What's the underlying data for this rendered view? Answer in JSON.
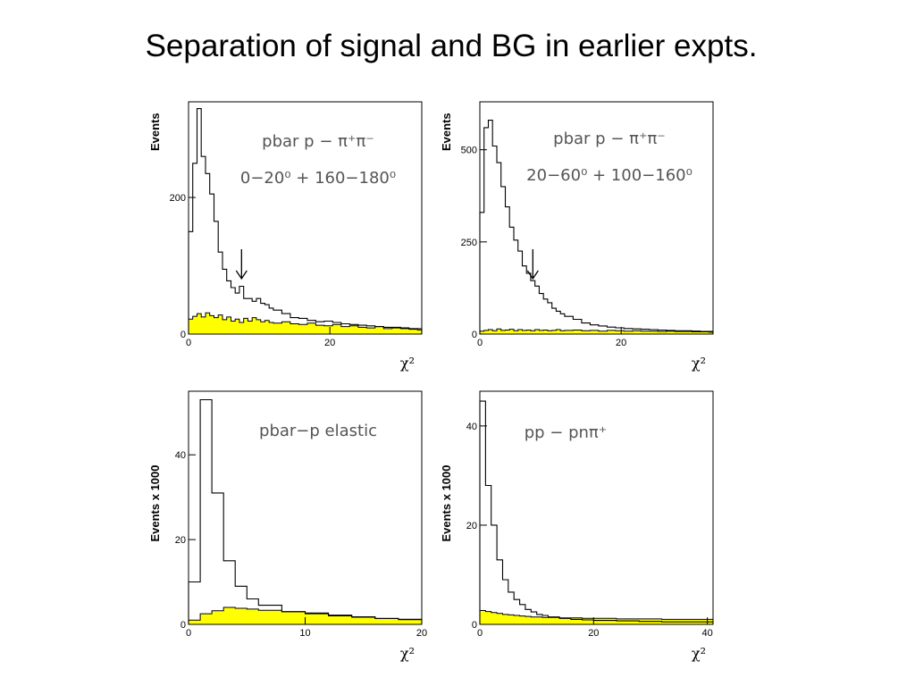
{
  "slide": {
    "title": "Separation of signal and BG in earlier expts."
  },
  "colors": {
    "background_fill": "#ffff00",
    "line": "#000000",
    "annotation": "#555555"
  },
  "chart_data": [
    {
      "type": "histogram",
      "ylabel": "Events",
      "xlabel": "χ²",
      "xlim": [
        0,
        33
      ],
      "ylim": [
        0,
        340
      ],
      "xticks": [
        "0",
        "20"
      ],
      "yticks": [
        "0",
        "200"
      ],
      "annotations": [
        "pbar p − π⁺π⁻",
        "0−20⁰ + 160−180⁰"
      ],
      "arrow_at_x": 7.5,
      "signal": {
        "x": [
          0,
          0.6,
          1.2,
          1.8,
          2.4,
          3.0,
          3.6,
          4.2,
          4.8,
          5.4,
          6.0,
          6.6,
          7.2,
          7.8,
          8.4,
          9.0,
          9.6,
          10.2,
          10.8,
          11.4,
          12.0,
          13.2,
          14.4,
          15.6,
          16.8,
          18.0,
          19.2,
          20.4,
          21.6,
          22.8,
          24.0,
          25.2,
          26.4,
          27.6,
          28.8,
          30.0,
          31.2,
          32.4
        ],
        "values": [
          150,
          250,
          330,
          260,
          235,
          205,
          165,
          120,
          95,
          78,
          68,
          60,
          70,
          52,
          52,
          48,
          52,
          45,
          43,
          38,
          35,
          30,
          24,
          23,
          20,
          18,
          19,
          17,
          15,
          14,
          13,
          12,
          11,
          10,
          10,
          9,
          8,
          8
        ]
      },
      "background": {
        "x": [
          0,
          0.6,
          1.2,
          1.8,
          2.4,
          3.0,
          3.6,
          4.2,
          4.8,
          5.4,
          6.0,
          6.6,
          7.2,
          7.8,
          8.4,
          9.0,
          9.6,
          10.2,
          10.8,
          11.4,
          12.0,
          13.2,
          14.4,
          15.6,
          16.8,
          18.0,
          19.2,
          20.4,
          21.6,
          22.8,
          24.0,
          25.2,
          26.4,
          27.6,
          28.8,
          30.0,
          31.2,
          32.4
        ],
        "values": [
          22,
          26,
          30,
          25,
          31,
          27,
          24,
          28,
          21,
          25,
          19,
          22,
          17,
          23,
          19,
          24,
          21,
          18,
          20,
          17,
          16,
          18,
          15,
          14,
          16,
          13,
          12,
          14,
          11,
          12,
          10,
          9,
          11,
          8,
          9,
          8,
          7,
          6
        ]
      }
    },
    {
      "type": "histogram",
      "ylabel": "Events",
      "xlabel": "χ²",
      "xlim": [
        0,
        33
      ],
      "ylim": [
        0,
        630
      ],
      "xticks": [
        "0",
        "20"
      ],
      "yticks": [
        "0",
        "250",
        "500"
      ],
      "annotations": [
        "pbar p − π⁺π⁻",
        "20−60⁰ + 100−160⁰"
      ],
      "arrow_at_x": 7.5,
      "signal": {
        "x": [
          0,
          0.6,
          1.2,
          1.8,
          2.4,
          3.0,
          3.6,
          4.2,
          4.8,
          5.4,
          6.0,
          6.6,
          7.2,
          7.8,
          8.4,
          9.0,
          9.6,
          10.2,
          10.8,
          11.4,
          12.0,
          13.2,
          14.4,
          15.6,
          16.8,
          18.0,
          19.2,
          20.4,
          21.6,
          22.8,
          24.0,
          25.2,
          26.4,
          27.6,
          28.8,
          30.0,
          31.2,
          32.4
        ],
        "values": [
          330,
          560,
          580,
          510,
          465,
          400,
          345,
          290,
          255,
          225,
          185,
          165,
          145,
          130,
          110,
          95,
          85,
          70,
          62,
          55,
          48,
          40,
          30,
          25,
          22,
          19,
          17,
          15,
          14,
          13,
          12,
          11,
          10,
          9,
          9,
          8,
          7,
          7
        ]
      },
      "background": {
        "x": [
          0,
          0.6,
          1.2,
          1.8,
          2.4,
          3.0,
          3.6,
          4.2,
          4.8,
          5.4,
          6.0,
          6.6,
          7.2,
          7.8,
          8.4,
          9.0,
          9.6,
          10.2,
          10.8,
          11.4,
          12.0,
          13.2,
          14.4,
          15.6,
          16.8,
          18.0,
          19.2,
          20.4,
          21.6,
          22.8,
          24.0,
          25.2,
          26.4,
          27.6,
          28.8,
          30.0,
          31.2,
          32.4
        ],
        "values": [
          8,
          10,
          12,
          9,
          14,
          10,
          11,
          13,
          9,
          12,
          10,
          11,
          9,
          12,
          10,
          11,
          9,
          10,
          12,
          9,
          10,
          11,
          9,
          10,
          8,
          10,
          9,
          8,
          9,
          8,
          8,
          7,
          8,
          7,
          7,
          6,
          6,
          5
        ]
      }
    },
    {
      "type": "histogram",
      "ylabel": "Events x 1000",
      "xlabel": "χ²",
      "xlim": [
        0,
        20
      ],
      "ylim": [
        0,
        55
      ],
      "xticks": [
        "0",
        "10",
        "20"
      ],
      "yticks": [
        "0",
        "20",
        "40"
      ],
      "annotations": [
        "pbar−p elastic"
      ],
      "signal": {
        "x": [
          0,
          1,
          2,
          3,
          4,
          5,
          6,
          8,
          10,
          12,
          14,
          16,
          18
        ],
        "values": [
          10,
          53,
          31,
          15,
          9,
          6,
          4.5,
          3,
          2.5,
          2,
          1.7,
          1.4,
          1.2
        ]
      },
      "background": {
        "x": [
          0,
          1,
          2,
          3,
          4,
          5,
          6,
          8,
          10,
          12,
          14,
          16,
          18
        ],
        "values": [
          1,
          2.5,
          3.2,
          4,
          3.8,
          3.6,
          3.3,
          3.0,
          2.7,
          2.2,
          1.8,
          1.4,
          1.1
        ]
      }
    },
    {
      "type": "histogram",
      "ylabel": "Events x 1000",
      "xlabel": "χ²",
      "xlim": [
        0,
        41
      ],
      "ylim": [
        0,
        47
      ],
      "xticks": [
        "0",
        "20",
        "40"
      ],
      "yticks": [
        "0",
        "20",
        "40"
      ],
      "annotations": [
        "pp − pnπ⁺"
      ],
      "signal": {
        "x": [
          0,
          1,
          2,
          3,
          4,
          5,
          6,
          7,
          8,
          9,
          10,
          11,
          12,
          14,
          16,
          18,
          20,
          24,
          28,
          32,
          36
        ],
        "values": [
          45,
          28,
          20,
          13,
          9,
          6.5,
          5,
          4,
          3,
          2.5,
          2,
          1.8,
          1.5,
          1.2,
          1,
          0.9,
          0.8,
          0.7,
          0.6,
          0.5,
          0.5
        ]
      },
      "background": {
        "x": [
          0,
          1,
          2,
          3,
          4,
          5,
          6,
          7,
          8,
          9,
          10,
          11,
          12,
          14,
          16,
          18,
          20,
          24,
          28,
          32,
          36
        ],
        "values": [
          2.8,
          2.6,
          2.4,
          2.2,
          2.0,
          1.9,
          1.8,
          1.7,
          1.6,
          1.5,
          1.5,
          1.4,
          1.4,
          1.3,
          1.3,
          1.2,
          1.2,
          1.1,
          1.1,
          1.0,
          1.0
        ]
      }
    }
  ]
}
